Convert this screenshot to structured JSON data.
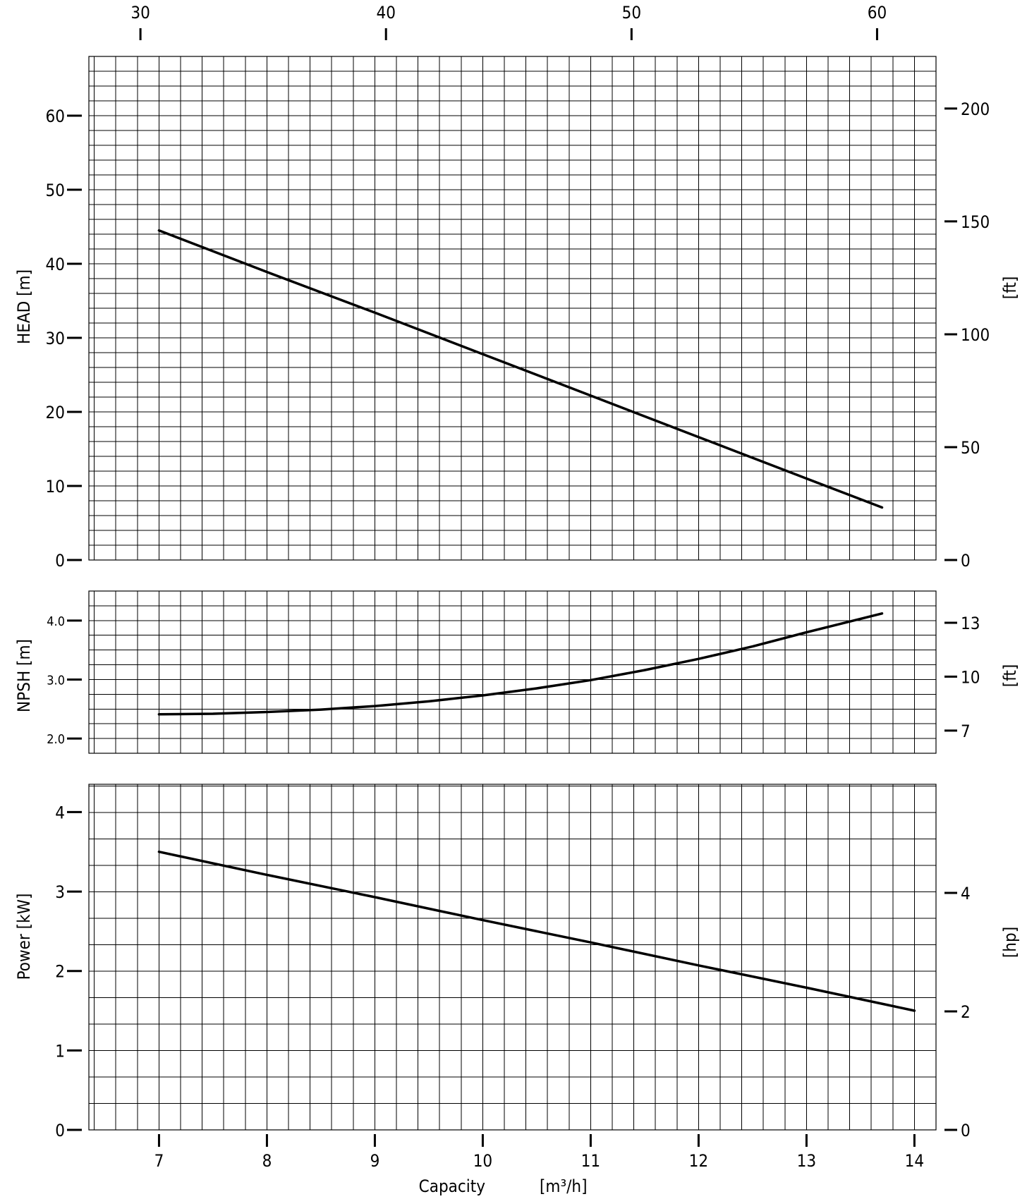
{
  "chart_data": {
    "type": "line",
    "x_axis": {
      "label": "Capacity",
      "unit": "[m³/h]",
      "range": [
        6.35,
        14.2
      ],
      "ticks": [
        7,
        8,
        9,
        10,
        11,
        12,
        13,
        14
      ]
    },
    "top_axis": {
      "range": [
        27.9,
        62.4
      ],
      "ticks": [
        30,
        40,
        50,
        60
      ]
    },
    "panels": [
      {
        "id": "head",
        "ylabel": "HEAD [m]",
        "ylim": [
          0,
          68
        ],
        "yticks": [
          0,
          10,
          20,
          30,
          40,
          50,
          60
        ],
        "secondary": {
          "label": "[ft]",
          "ticks": [
            0,
            50,
            100,
            150,
            200
          ],
          "factor": 3.2808
        },
        "grid": {
          "x_step": 0.2,
          "y_step": 2
        },
        "series": [
          {
            "x": [
              7.0,
              8.0,
              9.0,
              10.0,
              11.0,
              12.0,
              13.0,
              13.7
            ],
            "y": [
              44.5,
              38.9,
              33.4,
              27.8,
              22.2,
              16.6,
              11.0,
              7.1
            ]
          }
        ]
      },
      {
        "id": "npsh",
        "ylabel": "NPSH [m]",
        "ylim": [
          1.75,
          4.5
        ],
        "yticks": [
          2.0,
          3.0,
          4.0
        ],
        "ytick_labels": [
          "2.0",
          "3.0",
          "4.0"
        ],
        "secondary": {
          "label": "[ft]",
          "ticks": [
            7,
            10,
            13
          ],
          "factor": 3.2808
        },
        "grid": {
          "x_step": 0.2,
          "y_step": 0.25
        },
        "series": [
          {
            "x": [
              7.0,
              7.5,
              8.0,
              8.5,
              9.0,
              9.5,
              10.0,
              10.5,
              11.0,
              11.5,
              12.0,
              12.5,
              13.0,
              13.7
            ],
            "y": [
              2.41,
              2.42,
              2.45,
              2.49,
              2.55,
              2.63,
              2.73,
              2.85,
              2.99,
              3.16,
              3.35,
              3.56,
              3.8,
              4.12
            ]
          }
        ]
      },
      {
        "id": "power",
        "ylabel": "Power [kW]",
        "ylim": [
          0,
          4.35
        ],
        "yticks": [
          0,
          1,
          2,
          3,
          4
        ],
        "secondary": {
          "label": "[hp]",
          "ticks": [
            0,
            2,
            4
          ],
          "factor": 1.341
        },
        "grid": {
          "x_step": 0.2,
          "y_step": 0.333
        },
        "series": [
          {
            "x": [
              7.0,
              8.0,
              9.0,
              10.0,
              11.0,
              12.0,
              13.0,
              14.0
            ],
            "y": [
              3.5,
              3.21,
              2.93,
              2.64,
              2.36,
              2.07,
              1.79,
              1.5
            ]
          }
        ]
      }
    ]
  }
}
